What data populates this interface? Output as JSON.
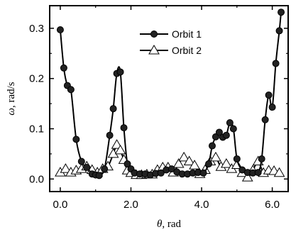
{
  "chart_data": {
    "type": "line",
    "title": "",
    "xlabel": {
      "symbol": "θ",
      "unit": ", rad"
    },
    "ylabel": {
      "symbol": "ω",
      "unit": ", rad/s"
    },
    "xlim": [
      -0.3,
      6.45
    ],
    "ylim": [
      -0.025,
      0.345
    ],
    "xticks": [
      0,
      2,
      4,
      6
    ],
    "xtick_labels": [
      "0.0",
      "2.0",
      "4.0",
      "6.0"
    ],
    "yticks": [
      0,
      0.1,
      0.2,
      0.3
    ],
    "ytick_labels": [
      "0.0",
      "0.1",
      "0.2",
      "0.3"
    ],
    "grid": false,
    "legend": "top-center",
    "series": [
      {
        "name": "Orbit 1",
        "marker": "filled-circle",
        "color": "#000000",
        "x": [
          0.0,
          0.1,
          0.2,
          0.3,
          0.45,
          0.6,
          0.75,
          0.9,
          1.0,
          1.1,
          1.25,
          1.4,
          1.5,
          1.6,
          1.7,
          1.8,
          1.9,
          2.0,
          2.1,
          2.25,
          2.4,
          2.55,
          2.7,
          2.85,
          3.0,
          3.15,
          3.3,
          3.45,
          3.6,
          3.75,
          3.9,
          4.05,
          4.2,
          4.3,
          4.4,
          4.5,
          4.6,
          4.7,
          4.8,
          4.9,
          5.0,
          5.15,
          5.3,
          5.45,
          5.6,
          5.7,
          5.8,
          5.9,
          6.0,
          6.1,
          6.2,
          6.25
        ],
        "y": [
          0.297,
          0.221,
          0.186,
          0.178,
          0.079,
          0.035,
          0.023,
          0.01,
          0.008,
          0.007,
          0.02,
          0.087,
          0.14,
          0.21,
          0.213,
          0.102,
          0.03,
          0.02,
          0.012,
          0.01,
          0.01,
          0.008,
          0.011,
          0.012,
          0.018,
          0.02,
          0.014,
          0.01,
          0.01,
          0.012,
          0.013,
          0.012,
          0.03,
          0.066,
          0.084,
          0.093,
          0.083,
          0.087,
          0.112,
          0.1,
          0.04,
          0.018,
          0.013,
          0.012,
          0.013,
          0.04,
          0.118,
          0.167,
          0.143,
          0.23,
          0.295,
          0.332
        ]
      },
      {
        "name": "Orbit 2",
        "marker": "open-triangle",
        "color": "#000000",
        "x": [
          0.0,
          0.15,
          0.3,
          0.45,
          0.6,
          0.75,
          0.9,
          1.05,
          1.2,
          1.35,
          1.5,
          1.6,
          1.7,
          1.8,
          1.9,
          2.0,
          2.15,
          2.3,
          2.45,
          2.6,
          2.75,
          2.9,
          3.05,
          3.2,
          3.35,
          3.5,
          3.65,
          3.8,
          3.95,
          4.1,
          4.25,
          4.4,
          4.55,
          4.7,
          4.85,
          5.0,
          5.15,
          5.3,
          5.45,
          5.6,
          5.75,
          5.9,
          6.05,
          6.2
        ],
        "y": [
          0.013,
          0.02,
          0.013,
          0.017,
          0.02,
          0.025,
          0.018,
          0.013,
          0.02,
          0.025,
          0.05,
          0.068,
          0.057,
          0.038,
          0.017,
          0.012,
          0.008,
          0.008,
          0.009,
          0.009,
          0.018,
          0.023,
          0.023,
          0.013,
          0.03,
          0.043,
          0.035,
          0.027,
          0.01,
          0.018,
          0.035,
          0.043,
          0.024,
          0.03,
          0.02,
          0.028,
          0.012,
          0.003,
          0.017,
          0.035,
          0.012,
          0.017,
          0.016,
          0.012
        ]
      }
    ]
  }
}
